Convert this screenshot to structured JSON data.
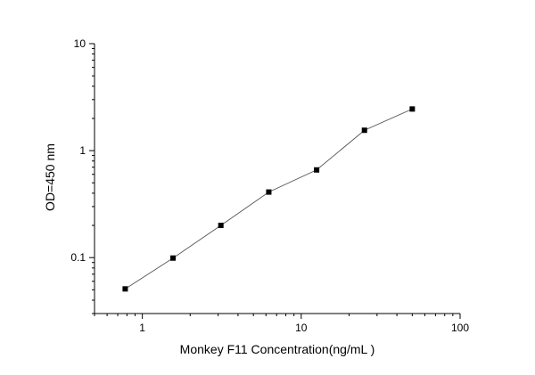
{
  "chart_data": {
    "type": "scatter",
    "xscale": "log",
    "yscale": "log",
    "xlim": [
      0.5,
      100
    ],
    "ylim": [
      0.03,
      10
    ],
    "xlabel": "Monkey F11 Concentration(ng/mL )",
    "ylabel": "OD=450 nm",
    "x_ticks": [
      {
        "value": 1,
        "label": "1"
      },
      {
        "value": 10,
        "label": "10"
      },
      {
        "value": 100,
        "label": "100"
      }
    ],
    "y_ticks": [
      {
        "value": 0.1,
        "label": "0.1"
      },
      {
        "value": 1,
        "label": "1"
      },
      {
        "value": 10,
        "label": "10"
      }
    ],
    "grid": false,
    "series": [
      {
        "x": [
          0.78,
          1.56,
          3.12,
          6.25,
          12.5,
          25,
          50
        ],
        "y": [
          0.051,
          0.099,
          0.2,
          0.41,
          0.66,
          1.55,
          2.45
        ],
        "marker": "square",
        "line": true,
        "color": "#000000",
        "line_color": "#555555"
      }
    ]
  }
}
